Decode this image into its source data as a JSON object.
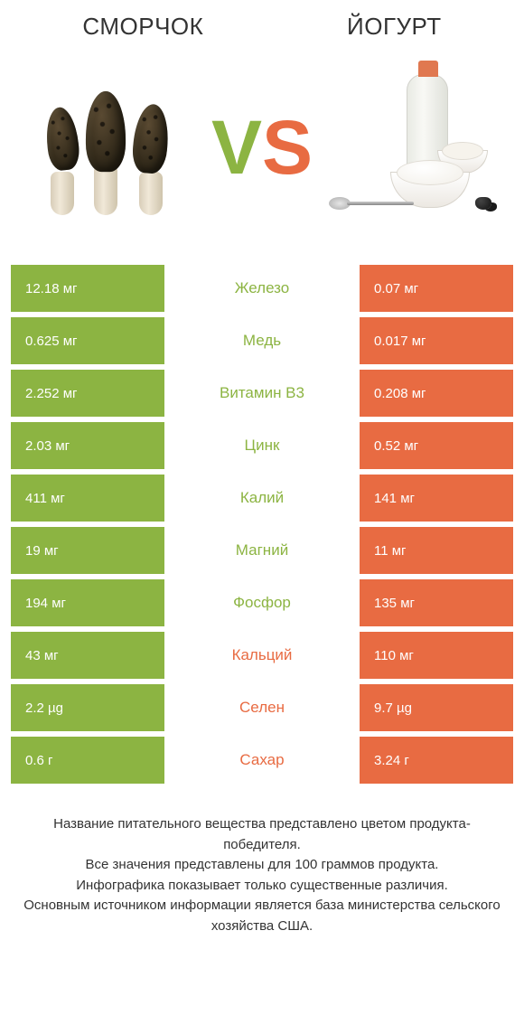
{
  "colors": {
    "left": "#8CB442",
    "right": "#E86B42",
    "bg": "#ffffff"
  },
  "header": {
    "left_title": "Сморчок",
    "right_title": "Йогурт",
    "vs_v": "V",
    "vs_s": "S"
  },
  "table": {
    "rows": [
      {
        "label": "Железо",
        "left": "12.18 мг",
        "right": "0.07 мг",
        "winner": "left"
      },
      {
        "label": "Медь",
        "left": "0.625 мг",
        "right": "0.017 мг",
        "winner": "left"
      },
      {
        "label": "Витамин B3",
        "left": "2.252 мг",
        "right": "0.208 мг",
        "winner": "left"
      },
      {
        "label": "Цинк",
        "left": "2.03 мг",
        "right": "0.52 мг",
        "winner": "left"
      },
      {
        "label": "Калий",
        "left": "411 мг",
        "right": "141 мг",
        "winner": "left"
      },
      {
        "label": "Магний",
        "left": "19 мг",
        "right": "11 мг",
        "winner": "left"
      },
      {
        "label": "Фосфор",
        "left": "194 мг",
        "right": "135 мг",
        "winner": "left"
      },
      {
        "label": "Кальций",
        "left": "43 мг",
        "right": "110 мг",
        "winner": "right"
      },
      {
        "label": "Селен",
        "left": "2.2 µg",
        "right": "9.7 µg",
        "winner": "right"
      },
      {
        "label": "Сахар",
        "left": "0.6 г",
        "right": "3.24 г",
        "winner": "right"
      }
    ]
  },
  "footer": {
    "line1": "Название питательного вещества представлено цветом продукта-победителя.",
    "line2": "Все значения представлены для 100 граммов продукта.",
    "line3": "Инфографика показывает только существенные различия.",
    "line4": "Основным источником информации является база министерства сельского хозяйства США."
  }
}
